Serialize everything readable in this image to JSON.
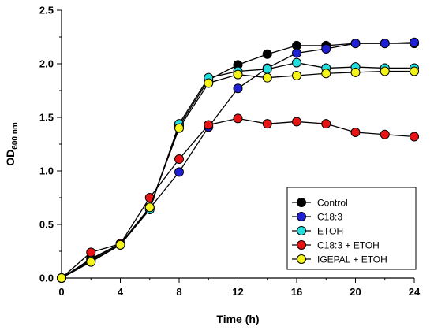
{
  "chart_data": {
    "type": "line",
    "xlabel": "Time (h)",
    "ylabel": "OD",
    "ylabel_sub": "600 nm",
    "xlim": [
      0,
      24
    ],
    "ylim": [
      0,
      2.5
    ],
    "xticks": [
      0,
      4,
      8,
      12,
      16,
      20,
      24
    ],
    "yticks": [
      0.0,
      0.5,
      1.0,
      1.5,
      2.0,
      2.5
    ],
    "ytick_labels": [
      "0.0",
      "0.5",
      "1.0",
      "1.5",
      "2.0",
      "2.5"
    ],
    "grid": false,
    "legend_position": "bottom-right",
    "series": [
      {
        "name": "Control",
        "color": "#000000",
        "x": [
          0,
          2,
          4,
          6,
          8,
          10,
          12,
          14,
          16,
          18,
          20,
          22,
          24
        ],
        "y": [
          0.0,
          0.18,
          0.32,
          0.66,
          1.42,
          1.85,
          1.99,
          2.09,
          2.17,
          2.17,
          2.19,
          2.19,
          2.19
        ]
      },
      {
        "name": "C18:3",
        "color": "#1f1fd6",
        "x": [
          0,
          2,
          4,
          6,
          8,
          10,
          12,
          14,
          16,
          18,
          20,
          22,
          24
        ],
        "y": [
          0.0,
          0.17,
          0.32,
          0.65,
          0.99,
          1.41,
          1.77,
          1.96,
          2.1,
          2.14,
          2.19,
          2.19,
          2.2
        ]
      },
      {
        "name": "ETOH",
        "color": "#22dede",
        "x": [
          0,
          2,
          4,
          6,
          8,
          10,
          12,
          14,
          16,
          18,
          20,
          22,
          24
        ],
        "y": [
          0.0,
          0.16,
          0.31,
          0.64,
          1.44,
          1.87,
          1.93,
          1.95,
          2.01,
          1.96,
          1.97,
          1.96,
          1.96
        ]
      },
      {
        "name": "C18:3 + ETOH",
        "color": "#e81414",
        "x": [
          0,
          2,
          4,
          6,
          8,
          10,
          12,
          14,
          16,
          18,
          20,
          22,
          24
        ],
        "y": [
          0.0,
          0.24,
          0.32,
          0.75,
          1.11,
          1.43,
          1.49,
          1.44,
          1.46,
          1.44,
          1.36,
          1.34,
          1.32
        ]
      },
      {
        "name": "IGEPAL + ETOH",
        "color": "#f4f418",
        "x": [
          0,
          2,
          4,
          6,
          8,
          10,
          12,
          14,
          16,
          18,
          20,
          22,
          24
        ],
        "y": [
          0.0,
          0.15,
          0.31,
          0.66,
          1.4,
          1.82,
          1.9,
          1.87,
          1.89,
          1.91,
          1.92,
          1.93,
          1.93
        ]
      }
    ]
  }
}
